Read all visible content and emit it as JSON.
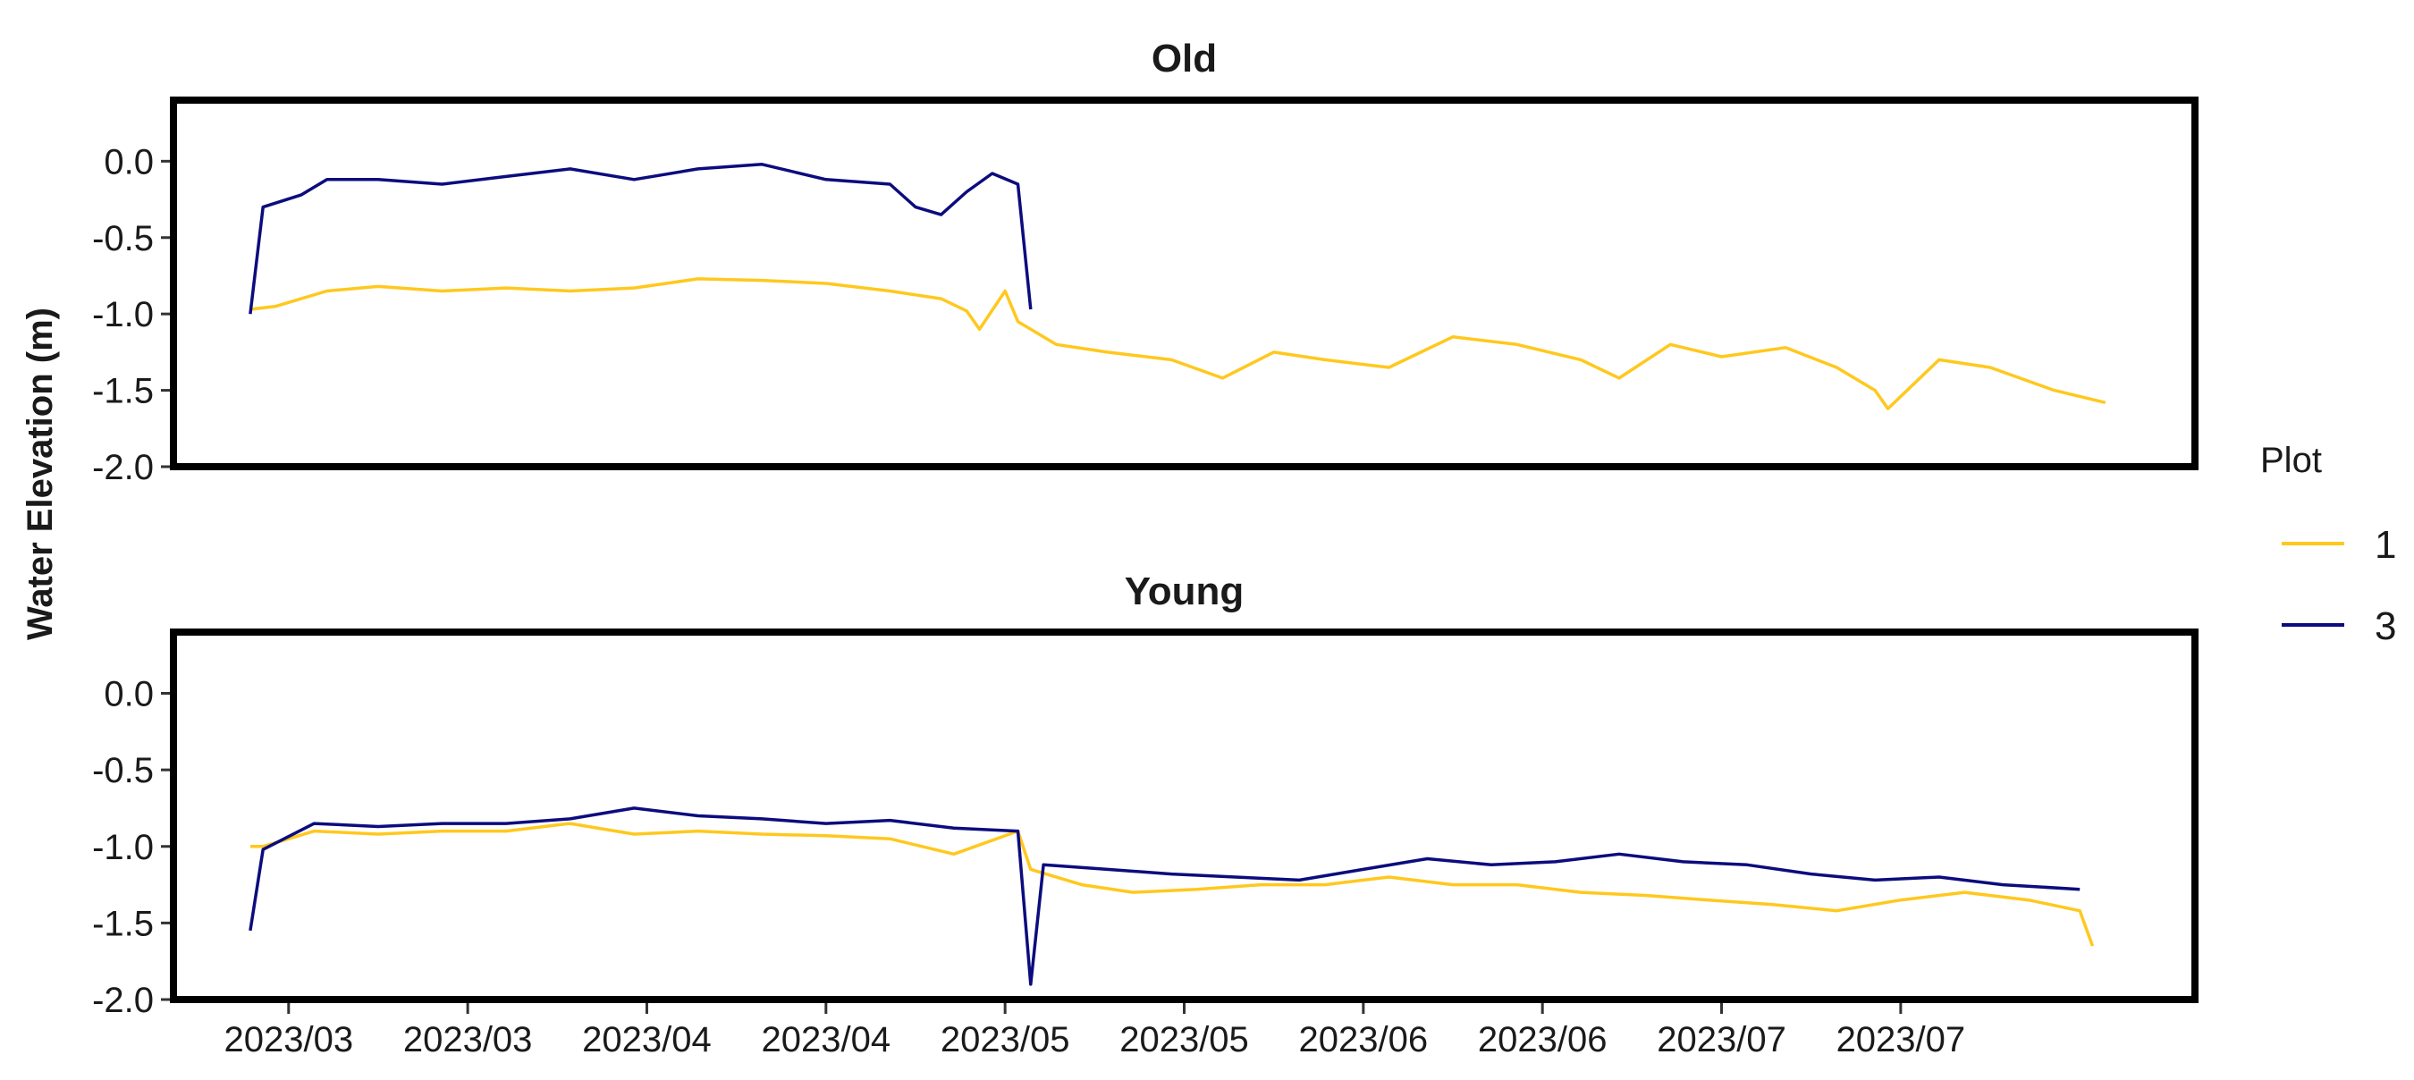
{
  "chart_data": {
    "type": "line",
    "ylabel": "Water Elevation (m)",
    "ylim": [
      -2.0,
      0.4
    ],
    "y_ticks": [
      "0.0",
      "-0.5",
      "-1.0",
      "-1.5",
      "-2.0"
    ],
    "y_tick_values": [
      0.0,
      -0.5,
      -1.0,
      -1.5,
      -2.0
    ],
    "x_range": [
      "2023-02-17",
      "2023-07-25"
    ],
    "x_ticks": [
      "2023/03",
      "2023/03",
      "2023/04",
      "2023/04",
      "2023/05",
      "2023/05",
      "2023/06",
      "2023/06",
      "2023/07",
      "2023/07"
    ],
    "x_tick_values": [
      "2023-02-26",
      "2023-03-12",
      "2023-03-26",
      "2023-04-09",
      "2023-04-23",
      "2023-05-07",
      "2023-05-21",
      "2023-06-04",
      "2023-06-18",
      "2023-07-02"
    ],
    "grid": false,
    "legend": {
      "title": "Plot",
      "position": "right",
      "entries": [
        {
          "label": "1",
          "color": "#FFC81E"
        },
        {
          "label": "3",
          "color": "#0C0C7E"
        }
      ]
    },
    "panels": [
      {
        "title": "Old",
        "series": [
          {
            "name": "1",
            "color": "#FFC81E",
            "x": [
              "2023-02-23",
              "2023-02-25",
              "2023-03-01",
              "2023-03-05",
              "2023-03-10",
              "2023-03-15",
              "2023-03-20",
              "2023-03-25",
              "2023-03-30",
              "2023-04-04",
              "2023-04-09",
              "2023-04-14",
              "2023-04-18",
              "2023-04-20",
              "2023-04-21",
              "2023-04-23",
              "2023-04-24",
              "2023-04-27",
              "2023-05-01",
              "2023-05-06",
              "2023-05-10",
              "2023-05-14",
              "2023-05-18",
              "2023-05-23",
              "2023-05-28",
              "2023-06-02",
              "2023-06-07",
              "2023-06-10",
              "2023-06-14",
              "2023-06-18",
              "2023-06-23",
              "2023-06-27",
              "2023-06-30",
              "2023-07-01",
              "2023-07-05",
              "2023-07-09",
              "2023-07-14",
              "2023-07-18"
            ],
            "y": [
              -0.97,
              -0.95,
              -0.85,
              -0.82,
              -0.85,
              -0.83,
              -0.85,
              -0.83,
              -0.77,
              -0.78,
              -0.8,
              -0.85,
              -0.9,
              -0.98,
              -1.1,
              -0.85,
              -1.05,
              -1.2,
              -1.25,
              -1.3,
              -1.42,
              -1.25,
              -1.3,
              -1.35,
              -1.15,
              -1.2,
              -1.3,
              -1.42,
              -1.2,
              -1.28,
              -1.22,
              -1.35,
              -1.5,
              -1.62,
              -1.3,
              -1.35,
              -1.5,
              -1.58
            ]
          },
          {
            "name": "3",
            "color": "#0C0C7E",
            "x": [
              "2023-02-23",
              "2023-02-24",
              "2023-02-27",
              "2023-03-01",
              "2023-03-05",
              "2023-03-10",
              "2023-03-15",
              "2023-03-20",
              "2023-03-25",
              "2023-03-30",
              "2023-04-04",
              "2023-04-09",
              "2023-04-14",
              "2023-04-16",
              "2023-04-18",
              "2023-04-20",
              "2023-04-22",
              "2023-04-24",
              "2023-04-25"
            ],
            "y": [
              -1.0,
              -0.3,
              -0.22,
              -0.12,
              -0.12,
              -0.15,
              -0.1,
              -0.05,
              -0.12,
              -0.05,
              -0.02,
              -0.12,
              -0.15,
              -0.3,
              -0.35,
              -0.2,
              -0.08,
              -0.15,
              -0.97
            ]
          }
        ]
      },
      {
        "title": "Young",
        "series": [
          {
            "name": "1",
            "color": "#FFC81E",
            "x": [
              "2023-02-23",
              "2023-02-24",
              "2023-02-28",
              "2023-03-05",
              "2023-03-10",
              "2023-03-15",
              "2023-03-20",
              "2023-03-25",
              "2023-03-30",
              "2023-04-04",
              "2023-04-09",
              "2023-04-14",
              "2023-04-19",
              "2023-04-24",
              "2023-04-25",
              "2023-04-29",
              "2023-05-03",
              "2023-05-08",
              "2023-05-13",
              "2023-05-18",
              "2023-05-23",
              "2023-05-28",
              "2023-06-02",
              "2023-06-07",
              "2023-06-12",
              "2023-06-17",
              "2023-06-22",
              "2023-06-27",
              "2023-07-02",
              "2023-07-07",
              "2023-07-12",
              "2023-07-16",
              "2023-07-17"
            ],
            "y": [
              -1.0,
              -1.0,
              -0.9,
              -0.92,
              -0.9,
              -0.9,
              -0.85,
              -0.92,
              -0.9,
              -0.92,
              -0.93,
              -0.95,
              -1.05,
              -0.9,
              -1.15,
              -1.25,
              -1.3,
              -1.28,
              -1.25,
              -1.25,
              -1.2,
              -1.25,
              -1.25,
              -1.3,
              -1.32,
              -1.35,
              -1.38,
              -1.42,
              -1.35,
              -1.3,
              -1.35,
              -1.42,
              -1.65
            ]
          },
          {
            "name": "3",
            "color": "#0C0C7E",
            "x": [
              "2023-02-23",
              "2023-02-24",
              "2023-02-28",
              "2023-03-05",
              "2023-03-10",
              "2023-03-15",
              "2023-03-20",
              "2023-03-25",
              "2023-03-30",
              "2023-04-04",
              "2023-04-09",
              "2023-04-14",
              "2023-04-19",
              "2023-04-24",
              "2023-04-25",
              "2023-04-26",
              "2023-05-01",
              "2023-05-06",
              "2023-05-11",
              "2023-05-16",
              "2023-05-21",
              "2023-05-26",
              "2023-05-31",
              "2023-06-05",
              "2023-06-10",
              "2023-06-15",
              "2023-06-20",
              "2023-06-25",
              "2023-06-30",
              "2023-07-05",
              "2023-07-10",
              "2023-07-16"
            ],
            "y": [
              -1.55,
              -1.02,
              -0.85,
              -0.87,
              -0.85,
              -0.85,
              -0.82,
              -0.75,
              -0.8,
              -0.82,
              -0.85,
              -0.83,
              -0.88,
              -0.9,
              -1.9,
              -1.12,
              -1.15,
              -1.18,
              -1.2,
              -1.22,
              -1.15,
              -1.08,
              -1.12,
              -1.1,
              -1.05,
              -1.1,
              -1.12,
              -1.18,
              -1.22,
              -1.2,
              -1.25,
              -1.28
            ]
          }
        ]
      }
    ]
  }
}
